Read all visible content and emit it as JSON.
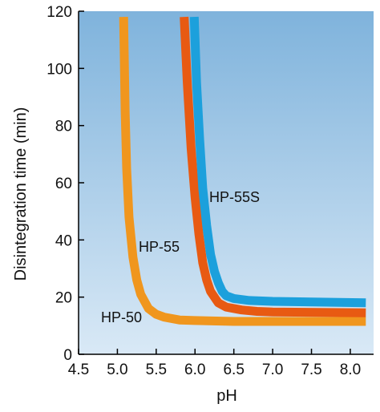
{
  "chart_data": {
    "type": "line",
    "xlabel": "pH",
    "ylabel": "Disintegration time  (min)",
    "xlim": [
      4.5,
      8.3
    ],
    "ylim": [
      0,
      120
    ],
    "x_ticks": [
      "4.5",
      "5.0",
      "5.5",
      "6.0",
      "6.5",
      "7.0",
      "7.5",
      "8.0"
    ],
    "y_ticks": [
      "0",
      "20",
      "40",
      "60",
      "80",
      "100",
      "120"
    ],
    "background": {
      "top": "#7fb3dc",
      "bottom": "#d9e9f6"
    },
    "series": [
      {
        "name": "HP-50",
        "color": "#f0961e",
        "x": [
          5.08,
          5.1,
          5.12,
          5.15,
          5.2,
          5.25,
          5.3,
          5.4,
          5.5,
          5.6,
          5.8,
          6.0,
          6.5,
          7.0,
          8.2
        ],
        "y": [
          118,
          85,
          65,
          48,
          34,
          26,
          21,
          16,
          14,
          13,
          12,
          11.8,
          11.5,
          11.5,
          11.5
        ]
      },
      {
        "name": "HP-55",
        "color": "#e85a12",
        "x": [
          5.86,
          5.9,
          5.95,
          6.0,
          6.05,
          6.1,
          6.15,
          6.2,
          6.3,
          6.4,
          6.6,
          6.8,
          7.0,
          8.2
        ],
        "y": [
          118,
          95,
          72,
          55,
          42,
          32,
          26,
          22,
          18,
          16.5,
          15.5,
          15,
          14.8,
          14.5
        ]
      },
      {
        "name": "HP-55S",
        "color": "#1ca0dc",
        "x": [
          5.99,
          6.02,
          6.06,
          6.1,
          6.15,
          6.2,
          6.25,
          6.3,
          6.35,
          6.4,
          6.5,
          6.7,
          7.0,
          8.2
        ],
        "y": [
          118,
          95,
          75,
          58,
          45,
          35,
          29,
          25,
          22,
          20.5,
          19.5,
          18.8,
          18.5,
          18
        ]
      }
    ]
  }
}
